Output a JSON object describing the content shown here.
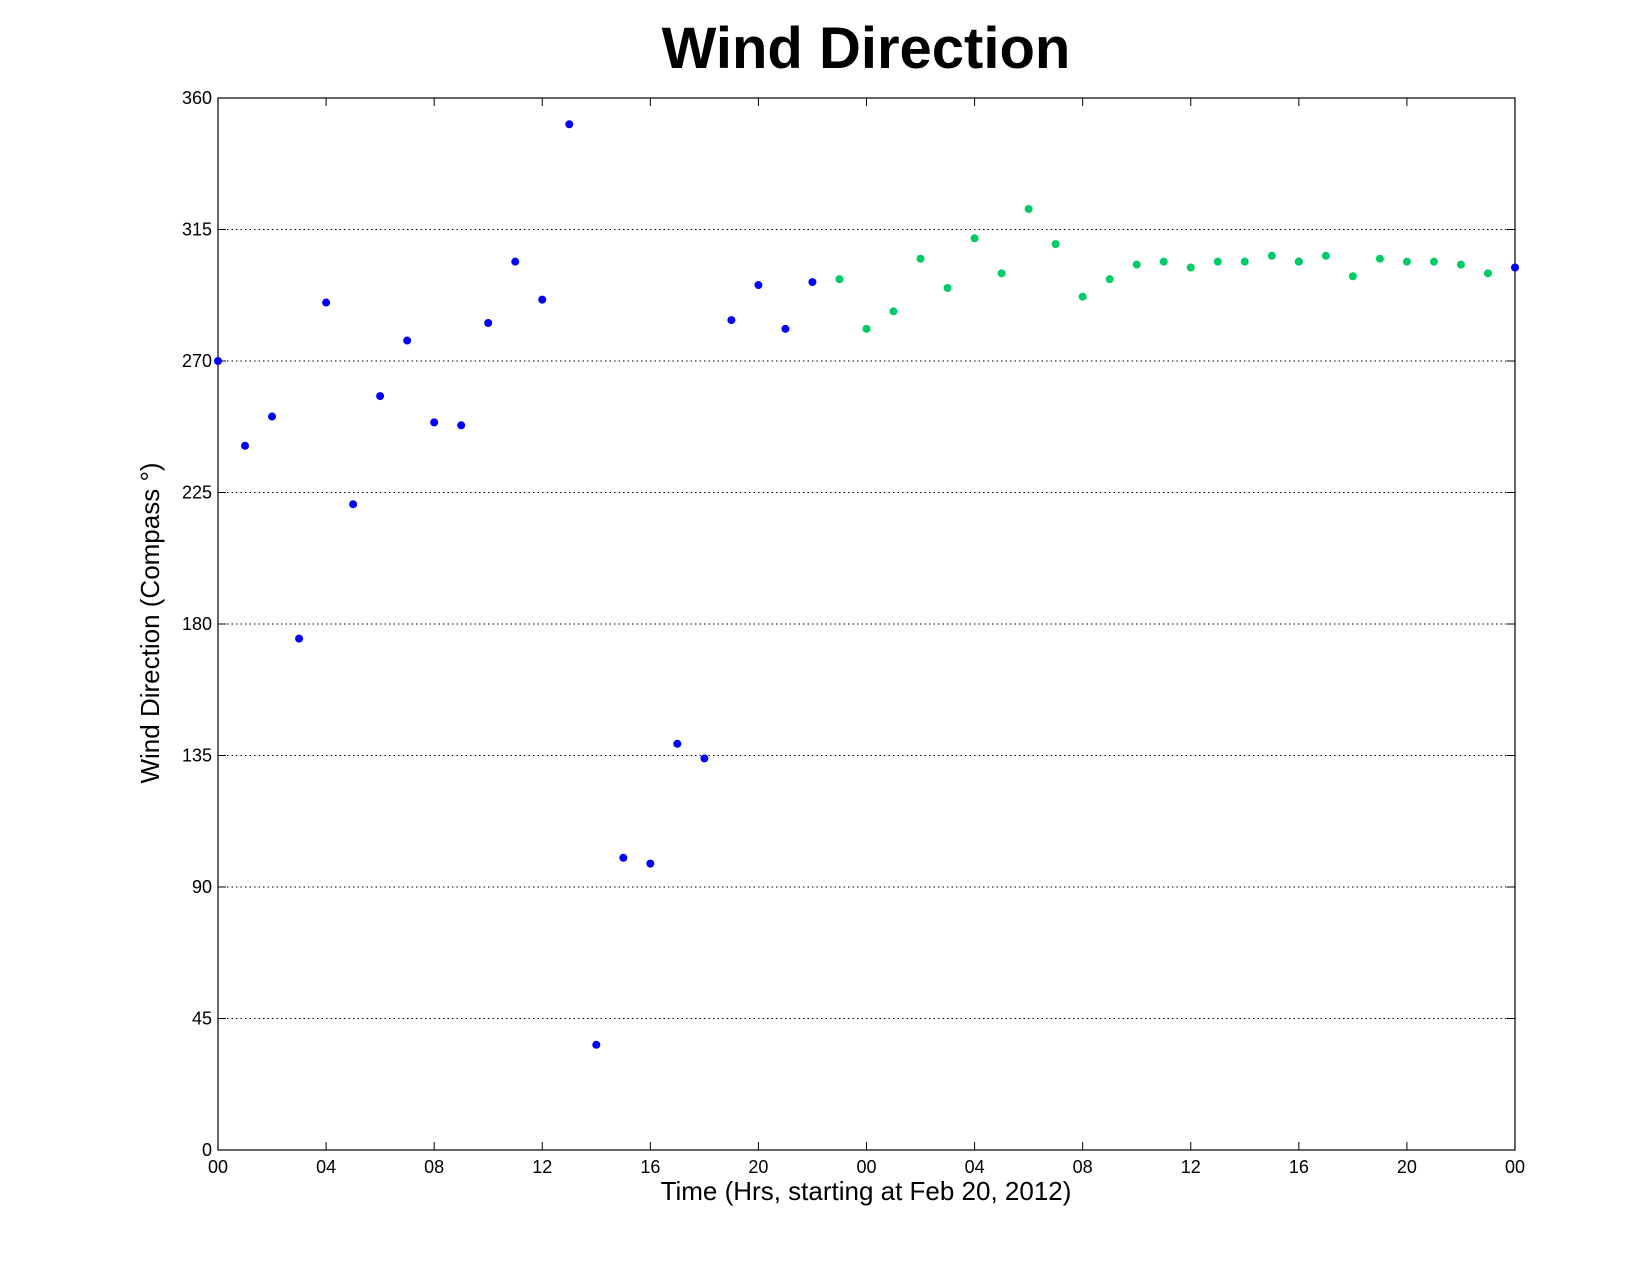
{
  "chart_data": {
    "type": "scatter",
    "title": "Wind Direction",
    "xlabel": "Time (Hrs, starting at Feb 20, 2012)",
    "ylabel": "Wind Direction (Compass °)",
    "xlim": [
      0,
      48
    ],
    "ylim": [
      0,
      360
    ],
    "x_tick_values": [
      0,
      4,
      8,
      12,
      16,
      20,
      24,
      28,
      32,
      36,
      40,
      44,
      48
    ],
    "x_tick_labels": [
      "00",
      "04",
      "08",
      "12",
      "16",
      "20",
      "00",
      "04",
      "08",
      "12",
      "16",
      "20",
      "00"
    ],
    "y_tick_values": [
      0,
      45,
      90,
      135,
      180,
      225,
      270,
      315,
      360
    ],
    "y_tick_labels": [
      "0",
      "45",
      "90",
      "135",
      "180",
      "225",
      "270",
      "315",
      "360"
    ],
    "grid": "y-dotted",
    "series": [
      {
        "color": "#0000ff",
        "x": [
          0,
          1,
          2,
          3,
          4,
          5,
          6,
          7,
          8,
          9,
          10,
          11,
          12,
          13,
          14,
          15,
          16,
          17,
          18,
          19,
          20,
          21,
          22,
          40,
          48
        ],
        "y": [
          270,
          241,
          251,
          175,
          290,
          221,
          258,
          277,
          249,
          248,
          283,
          304,
          291,
          351,
          36,
          100,
          98,
          139,
          134,
          284,
          296,
          281,
          297,
          304,
          302
        ]
      },
      {
        "color": "#00cc66",
        "x": [
          23,
          24,
          25,
          26,
          27,
          28,
          29,
          30,
          31,
          32,
          33,
          34,
          35,
          36,
          37,
          38,
          39,
          40,
          41,
          42,
          43,
          44,
          45,
          46,
          47
        ],
        "y": [
          298,
          281,
          287,
          305,
          295,
          312,
          300,
          322,
          310,
          292,
          298,
          303,
          304,
          302,
          304,
          304,
          306,
          304,
          306,
          299,
          305,
          304,
          304,
          303,
          300
        ]
      }
    ]
  }
}
